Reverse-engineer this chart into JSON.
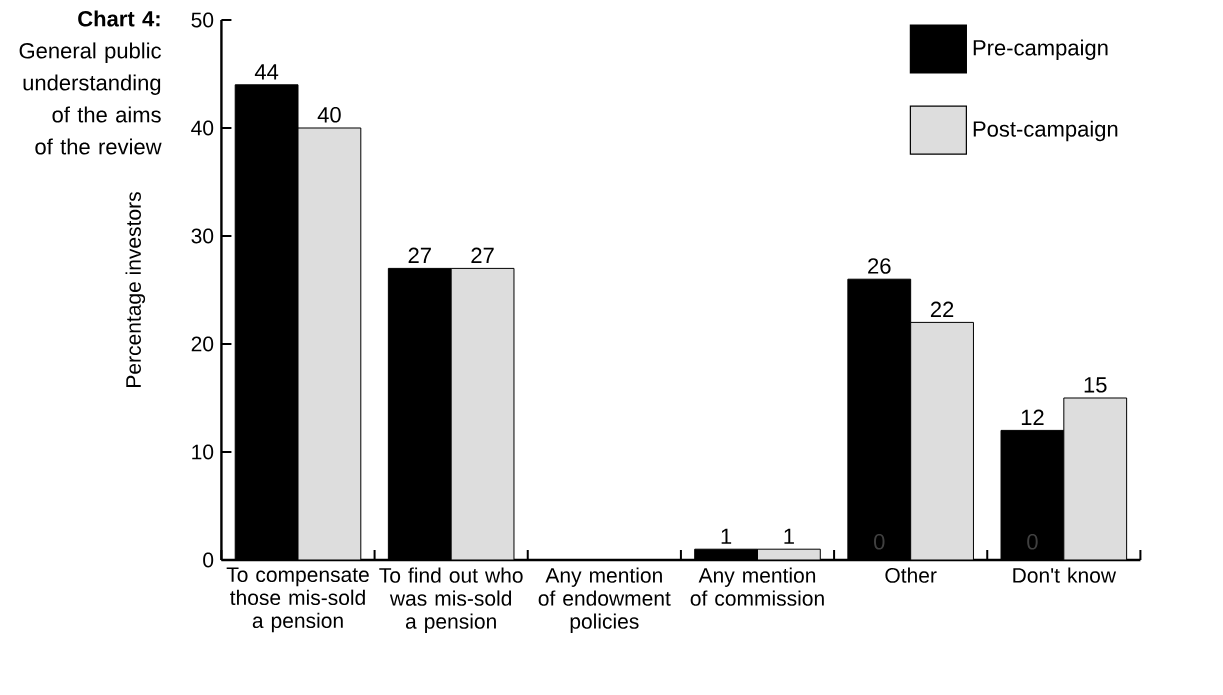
{
  "chart_data": {
    "type": "bar",
    "title": "**Chart 4:**",
    "subtitle": "General public understanding of the aims of the review",
    "ylabel": "Percentage  investors",
    "categories": [
      "To compensate those mis-sold a pension",
      "To find out who was mis-sold a pension",
      "Any mention of endowment policies",
      "Any mention of commission",
      "Other",
      "Don't know"
    ],
    "series": [
      {
        "name": "Pre-campaign",
        "color": "#000000",
        "values": [
          44,
          27,
          null,
          1,
          26,
          12
        ],
        "value_labels": [
          "44",
          "27",
          null,
          "1",
          "26",
          "12"
        ]
      },
      {
        "name": "Post-campaign",
        "color": "#dddddd",
        "values": [
          40,
          27,
          null,
          1,
          22,
          15
        ],
        "value_labels": [
          "40",
          "27",
          null,
          "1",
          "22",
          "15"
        ]
      }
    ],
    "ylim": [
      0,
      50
    ],
    "yticks": [
      0,
      10,
      20,
      30,
      40,
      50
    ],
    "grid": false,
    "legend": "top right",
    "annotations": [
      {
        "text": "0",
        "x": "Other",
        "y": 0
      },
      {
        "text": "0",
        "x": "Don't know",
        "y": 0
      }
    ]
  }
}
